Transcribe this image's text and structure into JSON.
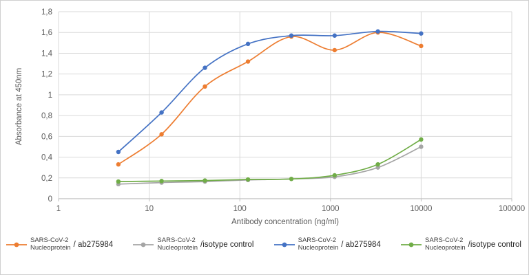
{
  "chart_data": {
    "type": "line",
    "title": "",
    "xlabel": "Antibody concentration (ng/ml)",
    "ylabel": "Absorbance at 450nm",
    "x_scale": "log",
    "xlim": [
      1,
      100000
    ],
    "ylim": [
      0,
      1.8
    ],
    "grid": true,
    "legend_position": "bottom",
    "x_tick_labels": [
      "1",
      "10",
      "100",
      "1000",
      "10000",
      "100000"
    ],
    "x_tick_values": [
      1,
      10,
      100,
      1000,
      10000,
      100000
    ],
    "y_tick_labels": [
      "0",
      "0,2",
      "0,4",
      "0,6",
      "0,8",
      "1",
      "1,2",
      "1,4",
      "1,6",
      "1,8"
    ],
    "y_tick_values": [
      0,
      0.2,
      0.4,
      0.6,
      0.8,
      1.0,
      1.2,
      1.4,
      1.6,
      1.8
    ],
    "x": [
      4.57,
      13.7,
      41.2,
      123,
      370,
      1111,
      3333,
      10000
    ],
    "series": [
      {
        "name": "SARS-CoV-2 Nucleoprotein / ab275984",
        "legend_lines": [
          "SARS-CoV-2",
          "Nucleoprotein"
        ],
        "legend_suffix": "/ ab275984",
        "color": "#ED7D31",
        "values": [
          0.33,
          0.62,
          1.08,
          1.32,
          1.56,
          1.43,
          1.6,
          1.47
        ]
      },
      {
        "name": "SARS-CoV-2 Nucleoprotein /isotype control",
        "legend_lines": [
          "SARS-CoV-2",
          "Nucleoprotein"
        ],
        "legend_suffix": "/isotype control",
        "color": "#A5A5A5",
        "values": [
          0.14,
          0.155,
          0.165,
          0.18,
          0.19,
          0.21,
          0.3,
          0.5
        ]
      },
      {
        "name": "SARS-CoV-2 Nucleoprotein / ab275984",
        "legend_lines": [
          "SARS-CoV-2",
          "Nucleoprotein"
        ],
        "legend_suffix": "/ ab275984",
        "color": "#4472C4",
        "values": [
          0.45,
          0.83,
          1.26,
          1.49,
          1.57,
          1.57,
          1.61,
          1.59
        ]
      },
      {
        "name": "SARS-CoV-2 Nucleoprotein /isotype control",
        "legend_lines": [
          "SARS-CoV-2",
          "Nucleoprotein"
        ],
        "legend_suffix": "/isotype control",
        "color": "#70AD47",
        "values": [
          0.165,
          0.17,
          0.175,
          0.185,
          0.19,
          0.225,
          0.33,
          0.57
        ]
      }
    ],
    "style": {
      "gridline_color": "#D9D9D9",
      "axis_line_color": "#BFBFBF",
      "tick_text_color": "#595959",
      "background": "#FFFFFF"
    }
  }
}
